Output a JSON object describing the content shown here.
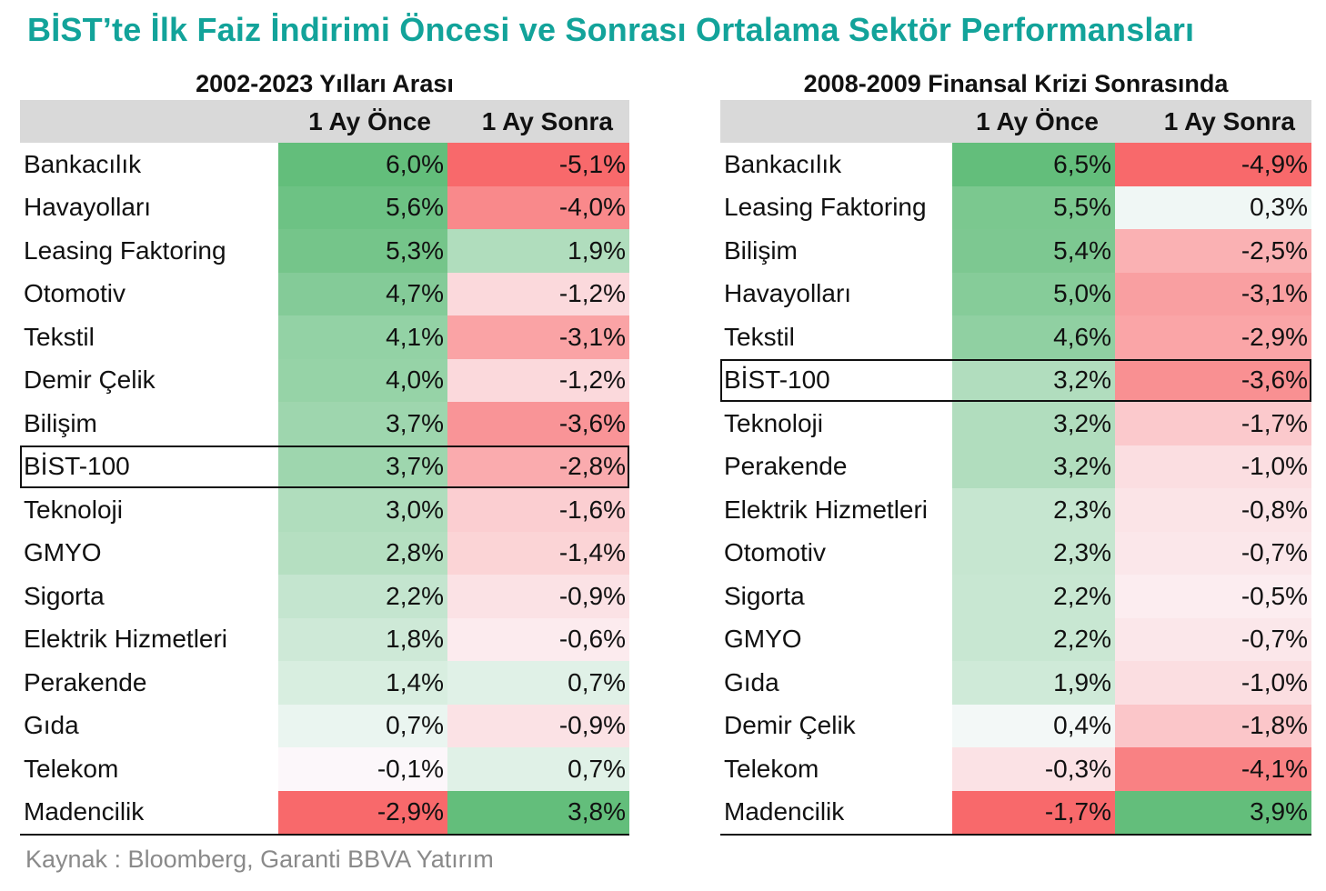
{
  "title": "BİST’te İlk Faiz İndirimi Öncesi ve Sonrası Ortalama Sektör Performansları",
  "source": "Kaynak : Bloomberg, Garanti BBVA Yatırım",
  "colors": {
    "title": "#12a39a",
    "header_bg": "#d9d9d9",
    "positive": "#63be7b",
    "negative": "#f8696b",
    "neutral": "#fcfcff"
  },
  "chart_data": [
    {
      "type": "table",
      "title": "2002-2023 Yılları Arası",
      "columns": [
        "",
        "1 Ay Önce",
        "1 Ay Sonra"
      ],
      "highlight_row": "BİST-100",
      "rows": [
        {
          "name": "Bankacılık",
          "before": 6.0,
          "after": -5.1,
          "before_label": "6,0%",
          "after_label": "-5,1%"
        },
        {
          "name": "Havayolları",
          "before": 5.6,
          "after": -4.0,
          "before_label": "5,6%",
          "after_label": "-4,0%"
        },
        {
          "name": "Leasing Faktoring",
          "before": 5.3,
          "after": 1.9,
          "before_label": "5,3%",
          "after_label": "1,9%"
        },
        {
          "name": "Otomotiv",
          "before": 4.7,
          "after": -1.2,
          "before_label": "4,7%",
          "after_label": "-1,2%"
        },
        {
          "name": "Tekstil",
          "before": 4.1,
          "after": -3.1,
          "before_label": "4,1%",
          "after_label": "-3,1%"
        },
        {
          "name": "Demir Çelik",
          "before": 4.0,
          "after": -1.2,
          "before_label": "4,0%",
          "after_label": "-1,2%"
        },
        {
          "name": "Bilişim",
          "before": 3.7,
          "after": -3.6,
          "before_label": "3,7%",
          "after_label": "-3,6%"
        },
        {
          "name": "BİST-100",
          "before": 3.7,
          "after": -2.8,
          "before_label": "3,7%",
          "after_label": "-2,8%"
        },
        {
          "name": "Teknoloji",
          "before": 3.0,
          "after": -1.6,
          "before_label": "3,0%",
          "after_label": "-1,6%"
        },
        {
          "name": "GMYO",
          "before": 2.8,
          "after": -1.4,
          "before_label": "2,8%",
          "after_label": "-1,4%"
        },
        {
          "name": "Sigorta",
          "before": 2.2,
          "after": -0.9,
          "before_label": "2,2%",
          "after_label": "-0,9%"
        },
        {
          "name": "Elektrik Hizmetleri",
          "before": 1.8,
          "after": -0.6,
          "before_label": "1,8%",
          "after_label": "-0,6%"
        },
        {
          "name": "Perakende",
          "before": 1.4,
          "after": 0.7,
          "before_label": "1,4%",
          "after_label": "0,7%"
        },
        {
          "name": "Gıda",
          "before": 0.7,
          "after": -0.9,
          "before_label": "0,7%",
          "after_label": "-0,9%"
        },
        {
          "name": "Telekom",
          "before": -0.1,
          "after": 0.7,
          "before_label": "-0,1%",
          "after_label": "0,7%"
        },
        {
          "name": "Madencilik",
          "before": -2.9,
          "after": 3.8,
          "before_label": "-2,9%",
          "after_label": "3,8%"
        }
      ]
    },
    {
      "type": "table",
      "title": "2008-2009 Finansal Krizi Sonrasında",
      "columns": [
        "",
        "1 Ay Önce",
        "1 Ay Sonra"
      ],
      "highlight_row": "BİST-100",
      "rows": [
        {
          "name": "Bankacılık",
          "before": 6.5,
          "after": -4.9,
          "before_label": "6,5%",
          "after_label": "-4,9%"
        },
        {
          "name": "Leasing Faktoring",
          "before": 5.5,
          "after": 0.3,
          "before_label": "5,5%",
          "after_label": "0,3%"
        },
        {
          "name": "Bilişim",
          "before": 5.4,
          "after": -2.5,
          "before_label": "5,4%",
          "after_label": "-2,5%"
        },
        {
          "name": "Havayolları",
          "before": 5.0,
          "after": -3.1,
          "before_label": "5,0%",
          "after_label": "-3,1%"
        },
        {
          "name": "Tekstil",
          "before": 4.6,
          "after": -2.9,
          "before_label": "4,6%",
          "after_label": "-2,9%"
        },
        {
          "name": "BİST-100",
          "before": 3.2,
          "after": -3.6,
          "before_label": "3,2%",
          "after_label": "-3,6%"
        },
        {
          "name": "Teknoloji",
          "before": 3.2,
          "after": -1.7,
          "before_label": "3,2%",
          "after_label": "-1,7%"
        },
        {
          "name": "Perakende",
          "before": 3.2,
          "after": -1.0,
          "before_label": "3,2%",
          "after_label": "-1,0%"
        },
        {
          "name": "Elektrik Hizmetleri",
          "before": 2.3,
          "after": -0.8,
          "before_label": "2,3%",
          "after_label": "-0,8%"
        },
        {
          "name": "Otomotiv",
          "before": 2.3,
          "after": -0.7,
          "before_label": "2,3%",
          "after_label": "-0,7%"
        },
        {
          "name": "Sigorta",
          "before": 2.2,
          "after": -0.5,
          "before_label": "2,2%",
          "after_label": "-0,5%"
        },
        {
          "name": "GMYO",
          "before": 2.2,
          "after": -0.7,
          "before_label": "2,2%",
          "after_label": "-0,7%"
        },
        {
          "name": "Gıda",
          "before": 1.9,
          "after": -1.0,
          "before_label": "1,9%",
          "after_label": "-1,0%"
        },
        {
          "name": "Demir Çelik",
          "before": 0.4,
          "after": -1.8,
          "before_label": "0,4%",
          "after_label": "-1,8%"
        },
        {
          "name": "Telekom",
          "before": -0.3,
          "after": -4.1,
          "before_label": "-0,3%",
          "after_label": "-4,1%"
        },
        {
          "name": "Madencilik",
          "before": -1.7,
          "after": 3.9,
          "before_label": "-1,7%",
          "after_label": "3,9%"
        }
      ]
    }
  ]
}
